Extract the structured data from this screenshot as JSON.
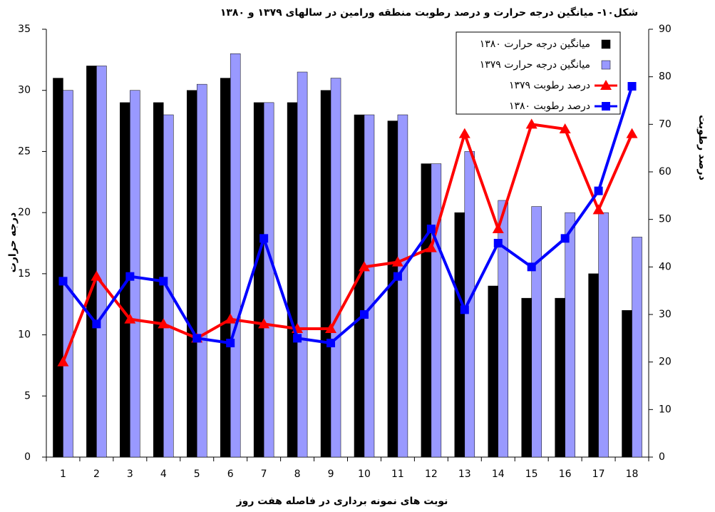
{
  "chart_data": {
    "type": "combo",
    "title": "شکل۱۰- میانگین درجه حرارت و درصد رطوبت منطقه ورامین در سالهای ۱۳۷۹ و ۱۳۸۰",
    "xlabel": "نوبت های نمونه برداری در فاصله هفت روز",
    "ylabel": "درجه حرارت",
    "y2label": "درصد رطوبت",
    "categories": [
      "1",
      "2",
      "3",
      "4",
      "5",
      "6",
      "7",
      "8",
      "9",
      "10",
      "11",
      "12",
      "13",
      "14",
      "15",
      "16",
      "17",
      "18"
    ],
    "series": [
      {
        "name": "میانگین درجه حرارت ۱۳۸۰",
        "type": "bar",
        "color": "#000000",
        "values": [
          31,
          32,
          29,
          29,
          30,
          31,
          29,
          29,
          30,
          28,
          27.5,
          24,
          20,
          14,
          13,
          13,
          15,
          12
        ]
      },
      {
        "name": "میانگین درجه حرارت ۱۳۷۹",
        "type": "bar",
        "color": "#9999ff",
        "values": [
          30,
          32,
          30,
          28,
          30.5,
          33,
          29,
          31.5,
          31,
          28,
          28,
          24,
          25,
          21,
          20.5,
          20,
          20,
          18
        ]
      },
      {
        "name": "درصد رطوبت ۱۳۷۹",
        "type": "line",
        "marker": "triangle",
        "axis": "y2",
        "color": "#ff0000",
        "values": [
          20,
          38,
          29,
          28,
          25,
          29,
          28,
          27,
          27,
          40,
          41,
          44,
          68,
          48,
          70,
          69,
          52,
          68
        ]
      },
      {
        "name": "درصد رطوبت ۱۳۸۰",
        "type": "line",
        "marker": "square",
        "axis": "y2",
        "color": "#0000ff",
        "values": [
          37,
          28,
          38,
          37,
          25,
          24,
          46,
          25,
          24,
          30,
          38,
          48,
          31,
          45,
          40,
          46,
          56,
          78
        ]
      }
    ],
    "ylim": [
      0,
      35
    ],
    "yticks": [
      0,
      5,
      10,
      15,
      20,
      25,
      30,
      35
    ],
    "y2lim": [
      0,
      90
    ],
    "y2ticks": [
      0,
      10,
      20,
      30,
      40,
      50,
      60,
      70,
      80,
      90
    ],
    "grid": false,
    "legend": "upper right"
  }
}
